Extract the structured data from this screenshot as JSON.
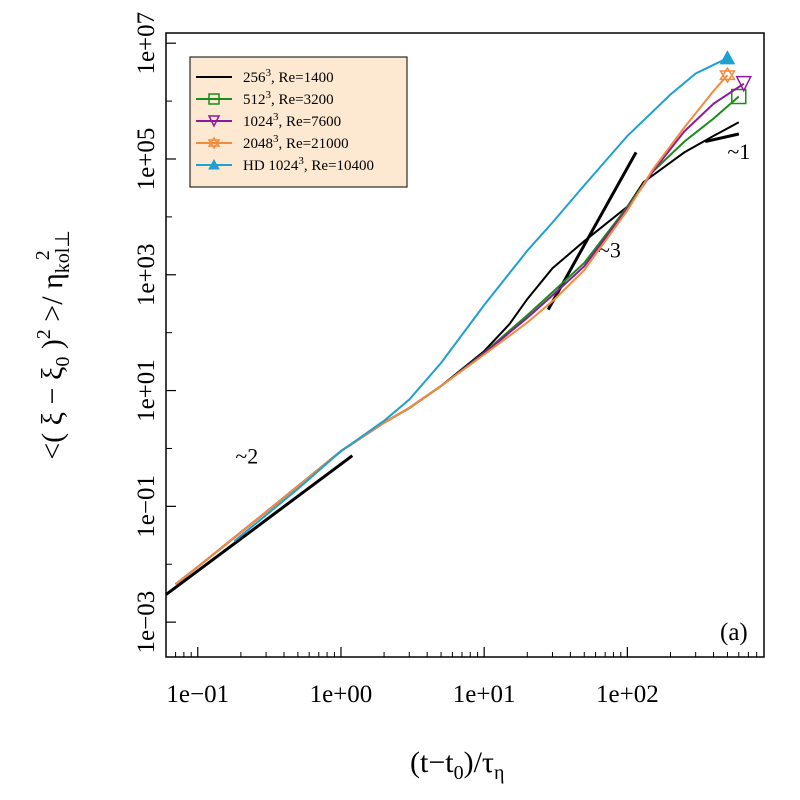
{
  "chart_data": {
    "type": "line",
    "panel_label": "(a)",
    "xscale": "log",
    "yscale": "log",
    "xlim": [
      0.06,
      900
    ],
    "ylim": [
      0.00025,
      15000000
    ],
    "xlabel_parts": [
      "(t−t",
      "0",
      ")/τ",
      "η"
    ],
    "ylabel_parts": [
      "<( ξ − ξ",
      "0",
      " )",
      "2",
      " >/ η",
      "kol⊥",
      "2"
    ],
    "x_ticks": [
      0.1,
      1,
      10,
      100
    ],
    "x_tick_labels": [
      "1e−01",
      "1e+00",
      "1e+01",
      "1e+02"
    ],
    "y_ticks": [
      0.001,
      0.1,
      10,
      1000,
      100000,
      10000000
    ],
    "y_tick_labels": [
      "1e−03",
      "1e−01",
      "1e+01",
      "1e+03",
      "1e+05",
      "1e+07"
    ],
    "legend_position": "top-left",
    "legend": [
      {
        "main": "256",
        "sup": "3",
        "rest": ", Re=1400",
        "color": "#000000",
        "marker": "none"
      },
      {
        "main": "512",
        "sup": "3",
        "rest": ", Re=3200",
        "color": "#1a8c1a",
        "marker": "square"
      },
      {
        "main": "1024",
        "sup": "3",
        "rest": ", Re=7600",
        "color": "#8b1a9b",
        "marker": "triangle-down"
      },
      {
        "main": "2048",
        "sup": "3",
        "rest": ", Re=21000",
        "color": "#f28c3c",
        "marker": "star"
      },
      {
        "main": "HD 1024",
        "sup": "3",
        "rest": ", Re=10400",
        "color": "#1ea0d0",
        "marker": "triangle-up-filled"
      }
    ],
    "series": [
      {
        "color": "#000000",
        "marker": "none",
        "points": [
          [
            0.07,
            0.0045
          ],
          [
            0.1,
            0.009
          ],
          [
            0.3,
            0.08
          ],
          [
            1,
            0.9
          ],
          [
            2,
            2.8
          ],
          [
            3,
            5
          ],
          [
            5,
            12
          ],
          [
            10,
            48
          ],
          [
            15,
            140
          ],
          [
            20,
            380
          ],
          [
            30,
            1300
          ],
          [
            50,
            3800
          ],
          [
            100,
            15000
          ],
          [
            130,
            40000
          ],
          [
            170,
            65000
          ],
          [
            250,
            130000
          ],
          [
            400,
            250000
          ],
          [
            600,
            430000
          ]
        ]
      },
      {
        "color": "#000000",
        "marker": "none",
        "points": [
          [
            350,
            200000
          ],
          [
            600,
            270000
          ]
        ]
      },
      {
        "color": "#1a8c1a",
        "marker": "square",
        "points": [
          [
            0.07,
            0.0045
          ],
          [
            0.1,
            0.009
          ],
          [
            0.3,
            0.08
          ],
          [
            1,
            0.9
          ],
          [
            2,
            2.8
          ],
          [
            3,
            5
          ],
          [
            5,
            12
          ],
          [
            10,
            45
          ],
          [
            20,
            200
          ],
          [
            30,
            500
          ],
          [
            50,
            1600
          ],
          [
            100,
            15000
          ],
          [
            150,
            60000
          ],
          [
            250,
            200000
          ],
          [
            400,
            500000
          ],
          [
            600,
            1200000
          ]
        ]
      },
      {
        "color": "#8b1a9b",
        "marker": "triangle-down",
        "points": [
          [
            0.07,
            0.0045
          ],
          [
            0.1,
            0.009
          ],
          [
            0.3,
            0.08
          ],
          [
            1,
            0.9
          ],
          [
            2,
            2.8
          ],
          [
            3,
            5
          ],
          [
            5,
            12
          ],
          [
            10,
            44
          ],
          [
            20,
            180
          ],
          [
            30,
            440
          ],
          [
            50,
            1400
          ],
          [
            100,
            14000
          ],
          [
            150,
            60000
          ],
          [
            250,
            300000
          ],
          [
            400,
            900000
          ],
          [
            650,
            2000000
          ]
        ]
      },
      {
        "color": "#f28c3c",
        "marker": "star",
        "points": [
          [
            0.07,
            0.0045
          ],
          [
            0.1,
            0.009
          ],
          [
            0.3,
            0.08
          ],
          [
            1,
            0.9
          ],
          [
            2,
            2.8
          ],
          [
            3,
            5
          ],
          [
            5,
            12
          ],
          [
            10,
            42
          ],
          [
            20,
            150
          ],
          [
            30,
            350
          ],
          [
            50,
            1200
          ],
          [
            100,
            13000
          ],
          [
            150,
            65000
          ],
          [
            250,
            350000
          ],
          [
            400,
            1500000
          ],
          [
            500,
            2800000
          ]
        ]
      },
      {
        "color": "#1ea0d0",
        "marker": "triangle-up-filled",
        "points": [
          [
            0.18,
            0.025
          ],
          [
            0.5,
            0.2
          ],
          [
            1,
            0.9
          ],
          [
            2,
            3
          ],
          [
            3,
            7
          ],
          [
            5,
            30
          ],
          [
            10,
            300
          ],
          [
            20,
            2600
          ],
          [
            30,
            8000
          ],
          [
            50,
            35000
          ],
          [
            100,
            250000
          ],
          [
            200,
            1300000
          ],
          [
            300,
            3000000
          ],
          [
            500,
            5500000
          ]
        ]
      }
    ],
    "reference_slopes": [
      {
        "label": "~2",
        "points": [
          [
            0.06,
            0.003
          ],
          [
            1.2,
            0.75
          ]
        ],
        "label_at": [
          0.22,
          0.55
        ]
      },
      {
        "label": "~3",
        "points": [
          [
            28,
            250
          ],
          [
            115,
            130000
          ]
        ],
        "label_at": [
          75,
          2000
        ]
      },
      {
        "label": "~1",
        "points": [
          [
            350,
            200000
          ],
          [
            600,
            270000
          ]
        ],
        "label_at": [
          600,
          100000
        ]
      }
    ]
  }
}
